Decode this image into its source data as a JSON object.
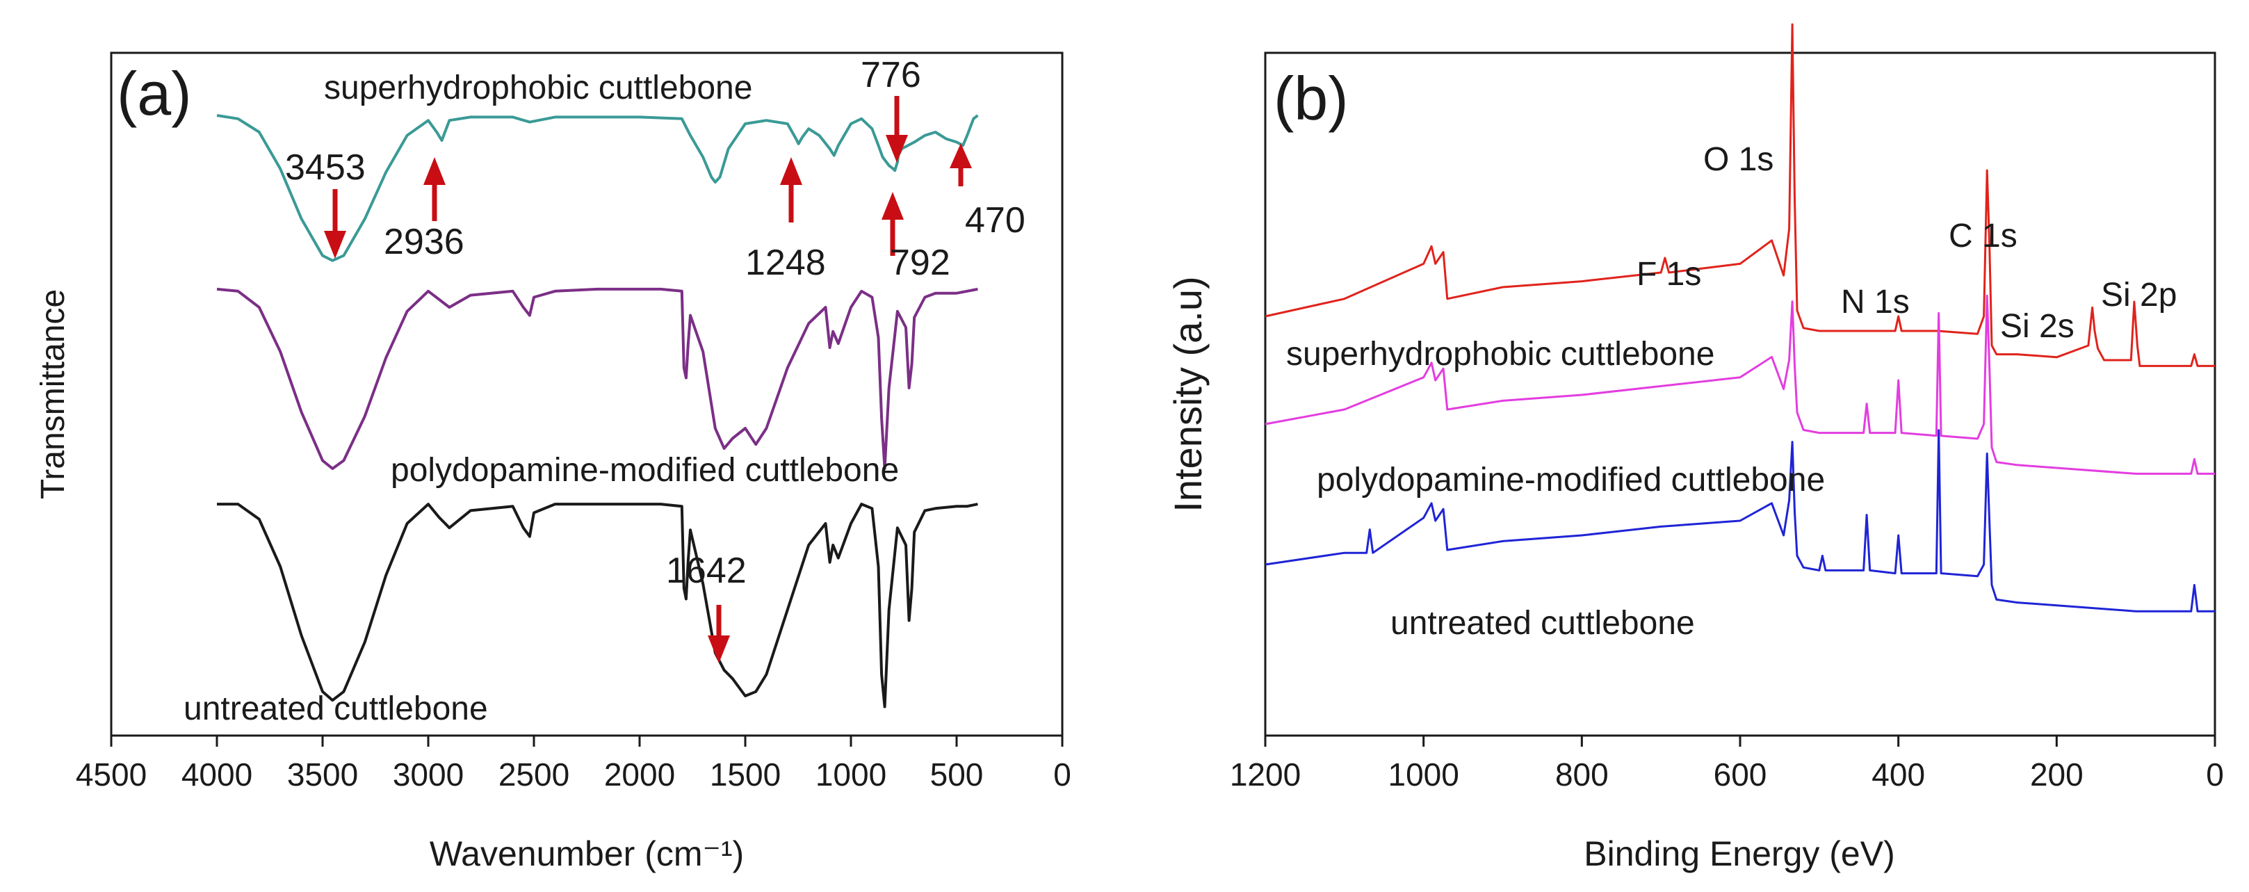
{
  "chart_data": [
    {
      "type": "line",
      "panel_label": "(a)",
      "xlabel": "Wavenumber (cm⁻¹)",
      "ylabel": "Transmittance",
      "xlim": [
        4500,
        0
      ],
      "x_reversed": true,
      "x_ticks": [
        4500,
        4000,
        3500,
        3000,
        2500,
        2000,
        1500,
        1000,
        500,
        0
      ],
      "y_ticks": [],
      "colors": {
        "superhydrophobic": "#3a9a96",
        "polydopamine": "#7b2f86",
        "untreated": "#1a1a1a",
        "arrow": "#c80e14"
      },
      "series": [
        {
          "name": "superhydrophobic cuttlebone",
          "x": [
            4000,
            3900,
            3800,
            3700,
            3600,
            3500,
            3453,
            3400,
            3300,
            3200,
            3100,
            3000,
            2960,
            2936,
            2900,
            2800,
            2600,
            2520,
            2400,
            2200,
            2000,
            1800,
            1760,
            1700,
            1660,
            1642,
            1620,
            1580,
            1500,
            1400,
            1300,
            1260,
            1248,
            1230,
            1200,
            1150,
            1100,
            1080,
            1060,
            1000,
            950,
            900,
            870,
            850,
            820,
            800,
            792,
            780,
            776,
            760,
            700,
            650,
            600,
            550,
            500,
            470,
            450,
            420,
            400
          ],
          "y": [
            1.0,
            0.98,
            0.9,
            0.68,
            0.38,
            0.16,
            0.13,
            0.16,
            0.38,
            0.66,
            0.88,
            0.97,
            0.9,
            0.85,
            0.97,
            0.99,
            0.99,
            0.96,
            0.99,
            0.99,
            0.99,
            0.98,
            0.88,
            0.75,
            0.63,
            0.6,
            0.63,
            0.8,
            0.95,
            0.97,
            0.95,
            0.86,
            0.83,
            0.87,
            0.92,
            0.88,
            0.8,
            0.76,
            0.82,
            0.95,
            0.98,
            0.92,
            0.82,
            0.75,
            0.7,
            0.68,
            0.67,
            0.72,
            0.76,
            0.8,
            0.84,
            0.88,
            0.9,
            0.86,
            0.84,
            0.82,
            0.88,
            0.98,
            1.0
          ]
        },
        {
          "name": "polydopamine-modified cuttlebone",
          "x": [
            4000,
            3900,
            3800,
            3700,
            3600,
            3500,
            3453,
            3400,
            3300,
            3200,
            3100,
            3000,
            2950,
            2900,
            2800,
            2600,
            2550,
            2520,
            2500,
            2400,
            2200,
            2000,
            1900,
            1800,
            1790,
            1780,
            1770,
            1760,
            1700,
            1642,
            1600,
            1560,
            1500,
            1450,
            1400,
            1300,
            1200,
            1120,
            1100,
            1085,
            1060,
            1000,
            950,
            900,
            870,
            855,
            840,
            820,
            780,
            740,
            725,
            712,
            700,
            650,
            600,
            500,
            450,
            400
          ],
          "y": [
            0.99,
            0.98,
            0.9,
            0.68,
            0.38,
            0.14,
            0.1,
            0.14,
            0.36,
            0.65,
            0.88,
            0.98,
            0.94,
            0.9,
            0.96,
            0.98,
            0.9,
            0.86,
            0.95,
            0.98,
            0.99,
            0.99,
            0.99,
            0.98,
            0.6,
            0.55,
            0.72,
            0.86,
            0.68,
            0.3,
            0.2,
            0.25,
            0.3,
            0.22,
            0.3,
            0.6,
            0.82,
            0.9,
            0.7,
            0.78,
            0.72,
            0.9,
            0.98,
            0.95,
            0.75,
            0.35,
            0.1,
            0.5,
            0.88,
            0.8,
            0.5,
            0.62,
            0.85,
            0.95,
            0.97,
            0.97,
            0.98,
            0.99
          ]
        },
        {
          "name": "untreated cuttlebone",
          "x": [
            4000,
            3900,
            3800,
            3700,
            3600,
            3500,
            3453,
            3400,
            3300,
            3200,
            3100,
            3000,
            2950,
            2900,
            2800,
            2600,
            2550,
            2520,
            2500,
            2400,
            2200,
            2000,
            1900,
            1800,
            1790,
            1780,
            1770,
            1760,
            1700,
            1642,
            1600,
            1560,
            1500,
            1450,
            1400,
            1300,
            1200,
            1120,
            1100,
            1085,
            1060,
            1000,
            950,
            900,
            870,
            855,
            840,
            820,
            780,
            740,
            725,
            712,
            700,
            650,
            600,
            500,
            450,
            400
          ],
          "y": [
            0.99,
            0.99,
            0.92,
            0.7,
            0.38,
            0.12,
            0.08,
            0.12,
            0.35,
            0.66,
            0.9,
            0.99,
            0.93,
            0.88,
            0.96,
            0.98,
            0.88,
            0.84,
            0.95,
            0.99,
            0.99,
            0.99,
            0.99,
            0.98,
            0.6,
            0.55,
            0.73,
            0.87,
            0.62,
            0.3,
            0.22,
            0.18,
            0.1,
            0.12,
            0.2,
            0.5,
            0.8,
            0.9,
            0.72,
            0.8,
            0.74,
            0.9,
            0.99,
            0.97,
            0.7,
            0.2,
            0.05,
            0.5,
            0.88,
            0.8,
            0.45,
            0.6,
            0.86,
            0.96,
            0.97,
            0.98,
            0.98,
            0.99
          ]
        }
      ],
      "curve_labels": [
        "superhydrophobic cuttlebone",
        "polydopamine-modified cuttlebone",
        "untreated cuttlebone"
      ],
      "annotations": [
        {
          "label": "3453",
          "x": 3453,
          "series": "superhydrophobic cuttlebone",
          "direction": "down"
        },
        {
          "label": "2936",
          "x": 2936,
          "series": "superhydrophobic cuttlebone",
          "direction": "up"
        },
        {
          "label": "1248",
          "x": 1248,
          "series": "superhydrophobic cuttlebone",
          "direction": "up"
        },
        {
          "label": "776",
          "x": 776,
          "series": "superhydrophobic cuttlebone",
          "direction": "down"
        },
        {
          "label": "792",
          "x": 792,
          "series": "superhydrophobic cuttlebone",
          "direction": "up"
        },
        {
          "label": "470",
          "x": 470,
          "series": "superhydrophobic cuttlebone",
          "direction": "up"
        },
        {
          "label": "1642",
          "x": 1642,
          "series": "untreated cuttlebone",
          "direction": "down"
        }
      ]
    },
    {
      "type": "line",
      "panel_label": "(b)",
      "xlabel": "Binding Energy (eV)",
      "ylabel": "Intensity (a.u)",
      "xlim": [
        1200,
        0
      ],
      "x_reversed": true,
      "x_ticks": [
        1200,
        1000,
        800,
        600,
        400,
        200,
        0
      ],
      "y_ticks": [],
      "colors": {
        "superhydrophobic": "#e0231c",
        "polydopamine": "#e33de0",
        "untreated": "#1f24d6"
      },
      "series": [
        {
          "name": "superhydrophobic cuttlebone",
          "x": [
            1200,
            1100,
            1000,
            990,
            985,
            975,
            970,
            900,
            800,
            700,
            695,
            690,
            600,
            560,
            545,
            538,
            534,
            531,
            528,
            520,
            500,
            450,
            404,
            400,
            396,
            350,
            300,
            292,
            288,
            285,
            282,
            276,
            250,
            200,
            160,
            155,
            152,
            148,
            140,
            106,
            102,
            98,
            95,
            50,
            30,
            26,
            22,
            0
          ],
          "y": [
            0.0,
            0.06,
            0.18,
            0.24,
            0.18,
            0.22,
            0.06,
            0.1,
            0.12,
            0.15,
            0.2,
            0.15,
            0.18,
            0.26,
            0.14,
            0.3,
            1.0,
            0.4,
            0.02,
            -0.04,
            -0.05,
            -0.05,
            -0.05,
            0.0,
            -0.05,
            -0.05,
            -0.06,
            0.0,
            0.5,
            0.25,
            -0.1,
            -0.13,
            -0.13,
            -0.14,
            -0.1,
            0.03,
            -0.05,
            -0.11,
            -0.15,
            -0.15,
            0.05,
            -0.1,
            -0.17,
            -0.17,
            -0.17,
            -0.13,
            -0.17,
            -0.17
          ]
        },
        {
          "name": "polydopamine-modified cuttlebone",
          "x": [
            1200,
            1100,
            1000,
            990,
            985,
            975,
            970,
            900,
            800,
            700,
            600,
            560,
            545,
            538,
            534,
            531,
            528,
            520,
            500,
            444,
            440,
            436,
            404,
            400,
            396,
            352,
            349,
            346,
            300,
            292,
            288,
            285,
            282,
            276,
            250,
            200,
            100,
            30,
            26,
            22,
            0
          ],
          "y": [
            0.0,
            0.05,
            0.16,
            0.21,
            0.15,
            0.19,
            0.05,
            0.08,
            0.1,
            0.13,
            0.16,
            0.23,
            0.12,
            0.22,
            0.42,
            0.2,
            0.04,
            -0.02,
            -0.03,
            -0.03,
            0.07,
            -0.03,
            -0.03,
            0.15,
            -0.03,
            -0.04,
            0.38,
            -0.04,
            -0.05,
            0.0,
            0.44,
            0.2,
            -0.08,
            -0.13,
            -0.14,
            -0.15,
            -0.17,
            -0.17,
            -0.12,
            -0.17,
            -0.17
          ]
        },
        {
          "name": "untreated cuttlebone",
          "x": [
            1200,
            1100,
            1072,
            1068,
            1064,
            1000,
            990,
            985,
            975,
            970,
            900,
            800,
            700,
            600,
            560,
            545,
            538,
            534,
            531,
            528,
            520,
            500,
            496,
            492,
            444,
            440,
            436,
            404,
            400,
            396,
            352,
            349,
            346,
            300,
            292,
            288,
            285,
            282,
            276,
            250,
            200,
            100,
            30,
            26,
            22,
            0
          ],
          "y": [
            0.0,
            0.04,
            0.04,
            0.12,
            0.04,
            0.16,
            0.21,
            0.15,
            0.19,
            0.05,
            0.08,
            0.1,
            0.13,
            0.15,
            0.21,
            0.1,
            0.22,
            0.42,
            0.18,
            0.03,
            -0.01,
            -0.02,
            0.03,
            -0.02,
            -0.02,
            0.17,
            -0.02,
            -0.03,
            0.1,
            -0.03,
            -0.03,
            0.46,
            -0.03,
            -0.04,
            0.0,
            0.38,
            0.15,
            -0.07,
            -0.12,
            -0.13,
            -0.14,
            -0.16,
            -0.16,
            -0.07,
            -0.16,
            -0.16
          ]
        }
      ],
      "curve_labels": [
        "superhydrophobic cuttlebone",
        "polydopamine-modified cuttlebone",
        "untreated cuttlebone"
      ],
      "annotations": [
        {
          "label": "O 1s",
          "x": 531
        },
        {
          "label": "F 1s",
          "x": 690
        },
        {
          "label": "N 1s",
          "x": 400
        },
        {
          "label": "C 1s",
          "x": 285
        },
        {
          "label": "Si 2s",
          "x": 154
        },
        {
          "label": "Si 2p",
          "x": 102
        }
      ]
    }
  ]
}
